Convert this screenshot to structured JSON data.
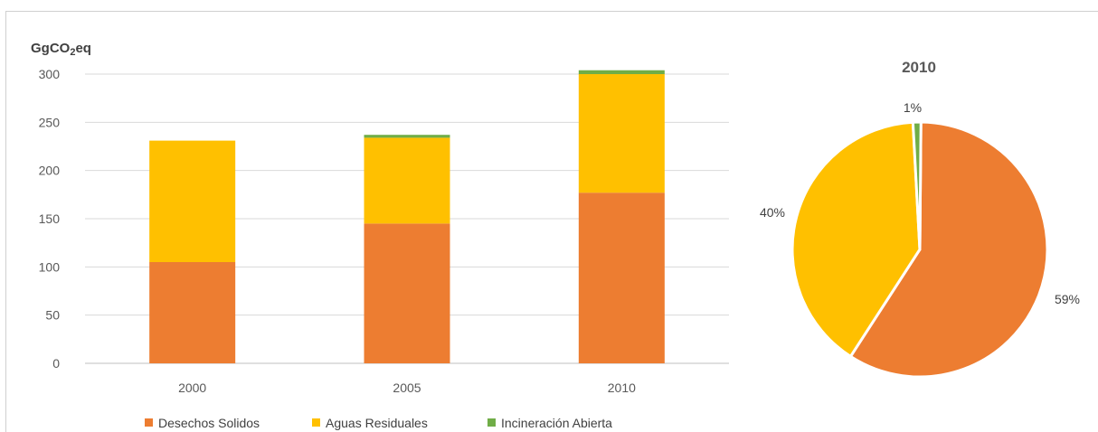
{
  "chart_data": [
    {
      "type": "bar",
      "stacked": true,
      "ylabel_prefix": "GgCO",
      "ylabel_sub": "2",
      "ylabel_suffix": "eq",
      "categories": [
        "2000",
        "2005",
        "2010"
      ],
      "yticks": [
        "0",
        "50",
        "100",
        "150",
        "200",
        "250",
        "300"
      ],
      "ylim": [
        0,
        300
      ],
      "grid": true,
      "legend_position": "bottom",
      "series": [
        {
          "name": "Desechos Solidos",
          "color": "#ED7D31",
          "values": [
            105,
            145,
            177
          ]
        },
        {
          "name": "Aguas Residuales",
          "color": "#FFC000",
          "values": [
            126,
            89,
            123
          ]
        },
        {
          "name": "Incineración Abierta",
          "color": "#70AD47",
          "values": [
            0,
            3,
            4
          ]
        }
      ]
    },
    {
      "type": "pie",
      "title": "2010",
      "slices": [
        {
          "name": "Desechos Solidos",
          "value": 59,
          "label": "59%",
          "color": "#ED7D31"
        },
        {
          "name": "Aguas Residuales",
          "value": 40,
          "label": "40%",
          "color": "#FFC000"
        },
        {
          "name": "Incineración Abierta",
          "value": 1,
          "label": "1%",
          "color": "#70AD47"
        }
      ]
    }
  ]
}
